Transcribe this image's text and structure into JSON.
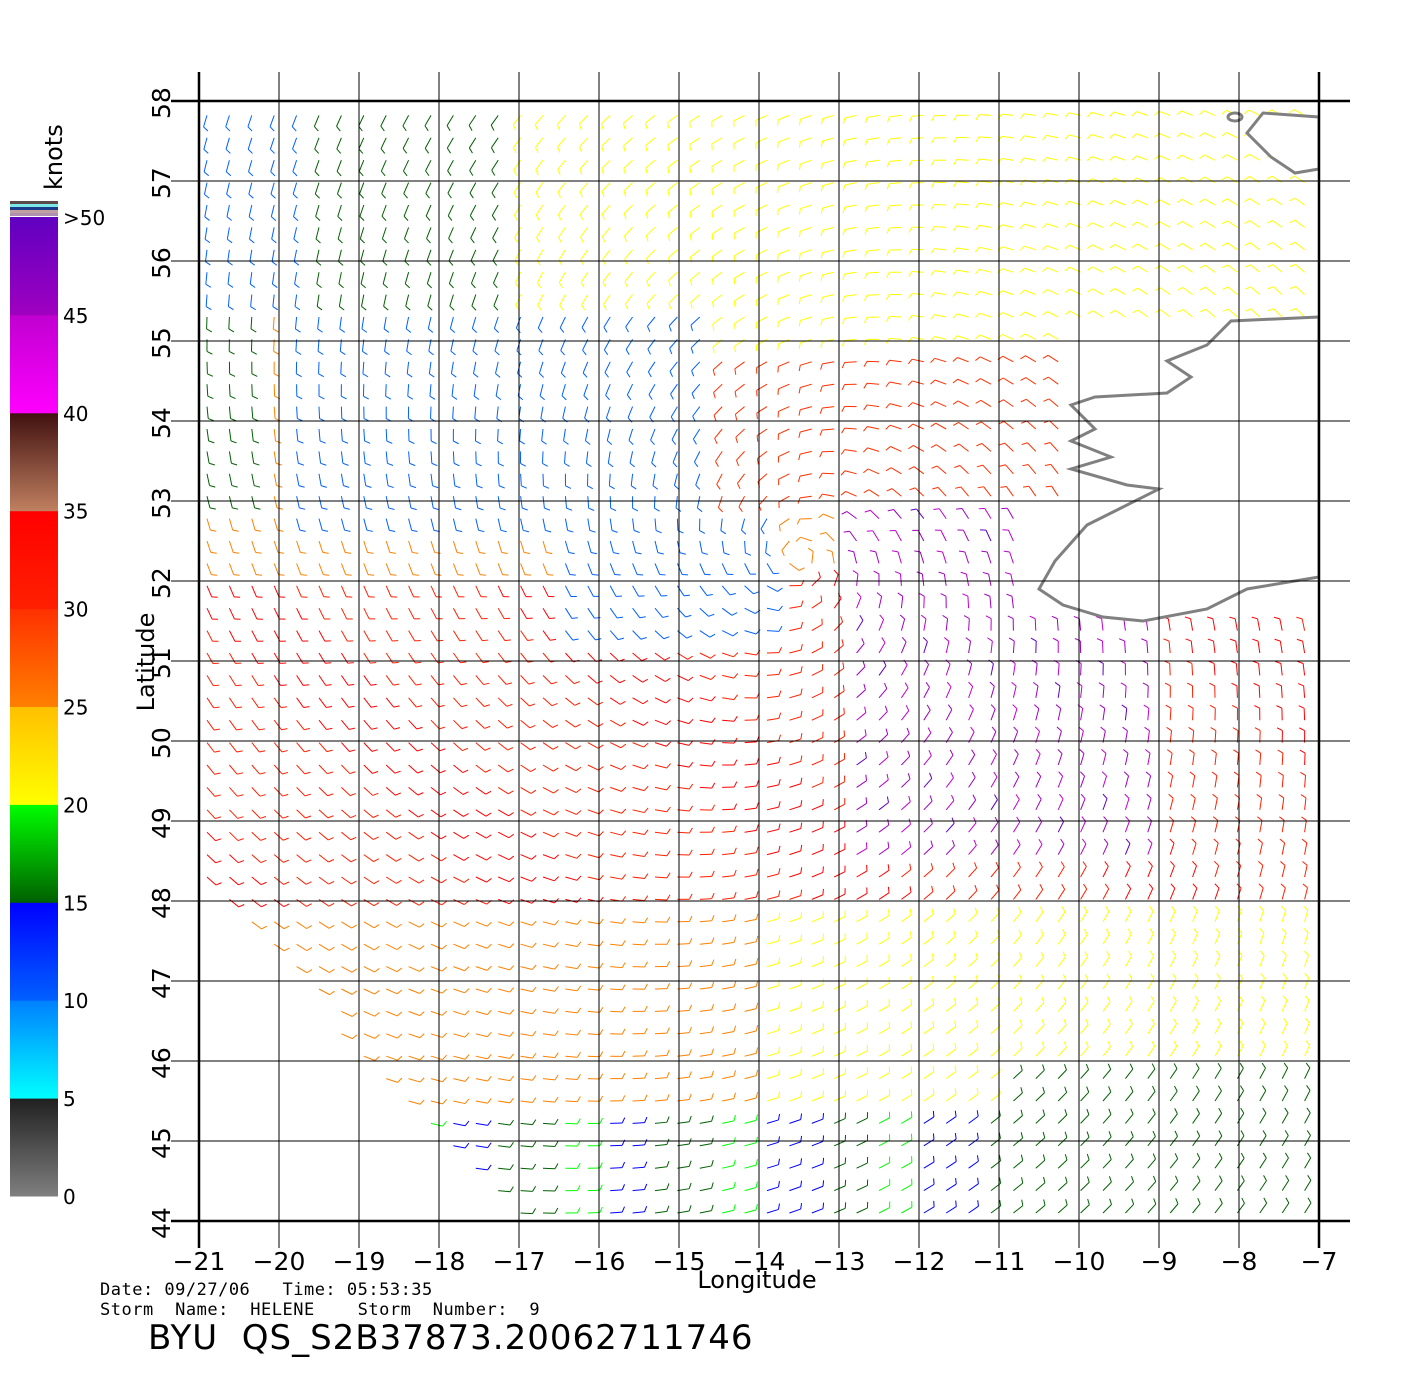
{
  "map": {
    "xlabel": "Longitude",
    "ylabel": "Latitude",
    "lon_range": [
      -21,
      -7
    ],
    "lat_range": [
      44,
      58
    ],
    "lon_ticks": [
      "−21",
      "−20",
      "−19",
      "−18",
      "−17",
      "−16",
      "−15",
      "−14",
      "−13",
      "−12",
      "−11",
      "−10",
      "−9",
      "−8",
      "−7"
    ],
    "lat_ticks": [
      "44",
      "45",
      "46",
      "47",
      "48",
      "49",
      "50",
      "51",
      "52",
      "53",
      "54",
      "55",
      "56",
      "57",
      "58"
    ],
    "grid": true,
    "land_color": "#ffffff",
    "coast_color": "#808080"
  },
  "colorbar": {
    "title": "knots",
    "labels": [
      "0",
      "5",
      "10",
      "15",
      "20",
      "25",
      "30",
      "35",
      "40",
      "45",
      ">50"
    ],
    "segments": [
      {
        "from": 0,
        "to": 5,
        "colors": [
          "#7f7f7f",
          "#202020"
        ]
      },
      {
        "from": 5,
        "to": 10,
        "colors": [
          "#00ffff",
          "#0080ff"
        ]
      },
      {
        "from": 10,
        "to": 15,
        "colors": [
          "#0060ff",
          "#0000ff"
        ]
      },
      {
        "from": 15,
        "to": 20,
        "colors": [
          "#006000",
          "#00ff00"
        ]
      },
      {
        "from": 20,
        "to": 25,
        "colors": [
          "#ffff00",
          "#ffc000"
        ]
      },
      {
        "from": 25,
        "to": 30,
        "colors": [
          "#ff8000",
          "#ff3000"
        ]
      },
      {
        "from": 30,
        "to": 35,
        "colors": [
          "#ff2000",
          "#ff0000"
        ]
      },
      {
        "from": 35,
        "to": 40,
        "colors": [
          "#c08060",
          "#401010"
        ]
      },
      {
        "from": 40,
        "to": 45,
        "colors": [
          "#ff00ff",
          "#c000d0"
        ]
      },
      {
        "from": 45,
        "to": 50,
        "colors": [
          "#a000c0",
          "#6000c0"
        ]
      }
    ]
  },
  "footer": {
    "date_line": "Date: 09/27/06   Time: 05:53:35",
    "storm_line": "Storm  Name:  HELENE    Storm  Number:  9",
    "product": "BYU  QS_S2B37873.20062711746"
  },
  "wind_field": {
    "units": "knots",
    "dominant_regions": [
      {
        "area": "NW corner",
        "speed": "10-15"
      },
      {
        "area": "central north (52-55N, 16-20W)",
        "speed": "5-15"
      },
      {
        "area": "band 50-53N west",
        "speed": "25-35"
      },
      {
        "area": "SE of 52N,-12W",
        "speed": "40-50"
      },
      {
        "area": "south 44-48N",
        "speed": "20-35"
      }
    ]
  }
}
